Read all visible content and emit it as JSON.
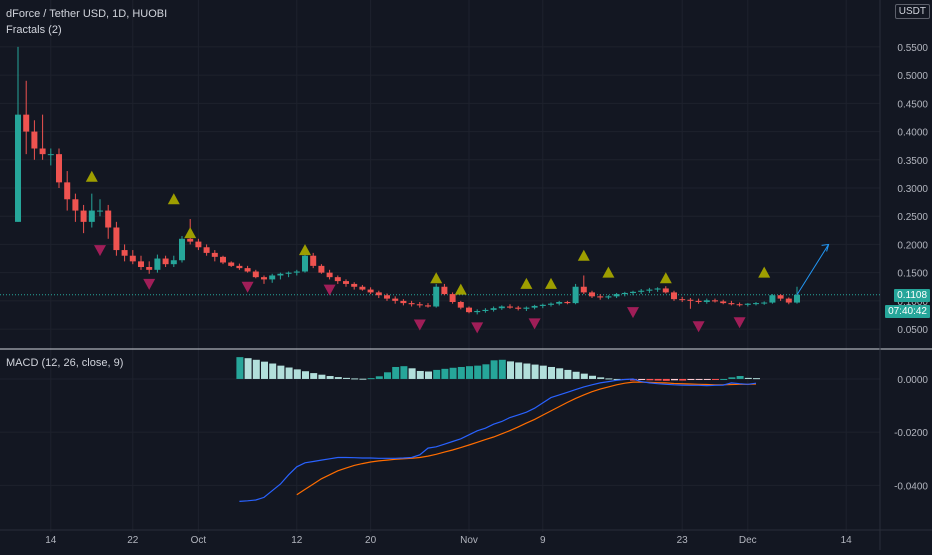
{
  "header": {
    "symbol_title": "dForce / Tether USD, 1D, HUOBI",
    "indicator": "Fractals (2)"
  },
  "macd_header": {
    "label": "MACD (12, 26, close, 9)"
  },
  "axis": {
    "currency": "USDT",
    "last_price": "0.1108",
    "countdown": "07:40:42"
  },
  "colors": {
    "background": "#131722",
    "up": "#26a69a",
    "down": "#ef5350",
    "fractal_up": "#9e9e00",
    "fractal_down": "#a01e58",
    "macd_line": "#2962ff",
    "signal_line": "#ff6d00",
    "hist_up_strong": "#26a69a",
    "hist_up_weak": "#b2dfdb",
    "hist_down_strong": "#ff5252",
    "hist_down_weak": "#ffcdd2",
    "grid": "#1e222d",
    "divider": "#d1d4dc"
  },
  "chart_data": [
    {
      "type": "candlestick",
      "title": "dForce / Tether USD, 1D, HUOBI",
      "y_ticks": [
        "0.5500",
        "0.5000",
        "0.4500",
        "0.4000",
        "0.3500",
        "0.3000",
        "0.2500",
        "0.2000",
        "0.1500",
        "0.1000",
        "0.0500"
      ],
      "x_ticks": [
        "14",
        "22",
        "Oct",
        "12",
        "20",
        "Nov",
        "9",
        "23",
        "Dec",
        "14"
      ],
      "ylim": [
        0.02,
        0.58
      ],
      "grid": true,
      "candles": [
        [
          0.24,
          0.55,
          0.24,
          0.43
        ],
        [
          0.43,
          0.49,
          0.36,
          0.4
        ],
        [
          0.4,
          0.42,
          0.35,
          0.37
        ],
        [
          0.37,
          0.43,
          0.35,
          0.36
        ],
        [
          0.36,
          0.37,
          0.34,
          0.36
        ],
        [
          0.36,
          0.37,
          0.3,
          0.31
        ],
        [
          0.31,
          0.33,
          0.26,
          0.28
        ],
        [
          0.28,
          0.29,
          0.24,
          0.26
        ],
        [
          0.26,
          0.27,
          0.22,
          0.24
        ],
        [
          0.24,
          0.29,
          0.23,
          0.26
        ],
        [
          0.26,
          0.28,
          0.25,
          0.26
        ],
        [
          0.26,
          0.27,
          0.21,
          0.23
        ],
        [
          0.23,
          0.24,
          0.18,
          0.19
        ],
        [
          0.19,
          0.2,
          0.17,
          0.18
        ],
        [
          0.18,
          0.19,
          0.165,
          0.17
        ],
        [
          0.17,
          0.18,
          0.155,
          0.16
        ],
        [
          0.16,
          0.17,
          0.148,
          0.155
        ],
        [
          0.155,
          0.182,
          0.15,
          0.175
        ],
        [
          0.175,
          0.18,
          0.16,
          0.165
        ],
        [
          0.165,
          0.18,
          0.16,
          0.172
        ],
        [
          0.172,
          0.215,
          0.168,
          0.21
        ],
        [
          0.21,
          0.245,
          0.2,
          0.205
        ],
        [
          0.205,
          0.21,
          0.19,
          0.195
        ],
        [
          0.195,
          0.2,
          0.18,
          0.185
        ],
        [
          0.185,
          0.19,
          0.17,
          0.178
        ],
        [
          0.178,
          0.18,
          0.165,
          0.168
        ],
        [
          0.168,
          0.17,
          0.16,
          0.162
        ],
        [
          0.162,
          0.166,
          0.155,
          0.158
        ],
        [
          0.158,
          0.162,
          0.15,
          0.152
        ],
        [
          0.152,
          0.155,
          0.14,
          0.142
        ],
        [
          0.142,
          0.145,
          0.13,
          0.138
        ],
        [
          0.138,
          0.148,
          0.132,
          0.145
        ],
        [
          0.145,
          0.15,
          0.138,
          0.148
        ],
        [
          0.148,
          0.152,
          0.142,
          0.15
        ],
        [
          0.15,
          0.155,
          0.145,
          0.152
        ],
        [
          0.152,
          0.185,
          0.15,
          0.18
        ],
        [
          0.18,
          0.185,
          0.158,
          0.162
        ],
        [
          0.162,
          0.165,
          0.148,
          0.15
        ],
        [
          0.15,
          0.155,
          0.138,
          0.142
        ],
        [
          0.142,
          0.145,
          0.13,
          0.135
        ],
        [
          0.135,
          0.138,
          0.125,
          0.13
        ],
        [
          0.13,
          0.133,
          0.12,
          0.125
        ],
        [
          0.125,
          0.128,
          0.118,
          0.12
        ],
        [
          0.12,
          0.124,
          0.112,
          0.115
        ],
        [
          0.115,
          0.118,
          0.105,
          0.11
        ],
        [
          0.11,
          0.113,
          0.1,
          0.104
        ],
        [
          0.104,
          0.108,
          0.095,
          0.1
        ],
        [
          0.1,
          0.103,
          0.092,
          0.096
        ],
        [
          0.096,
          0.1,
          0.09,
          0.094
        ],
        [
          0.094,
          0.098,
          0.088,
          0.092
        ],
        [
          0.092,
          0.096,
          0.088,
          0.09
        ],
        [
          0.09,
          0.13,
          0.088,
          0.125
        ],
        [
          0.125,
          0.13,
          0.11,
          0.112
        ],
        [
          0.112,
          0.115,
          0.095,
          0.098
        ],
        [
          0.098,
          0.1,
          0.085,
          0.088
        ],
        [
          0.088,
          0.09,
          0.078,
          0.08
        ],
        [
          0.08,
          0.085,
          0.076,
          0.082
        ],
        [
          0.082,
          0.087,
          0.079,
          0.084
        ],
        [
          0.084,
          0.09,
          0.081,
          0.087
        ],
        [
          0.087,
          0.092,
          0.084,
          0.09
        ],
        [
          0.09,
          0.094,
          0.086,
          0.088
        ],
        [
          0.088,
          0.091,
          0.083,
          0.086
        ],
        [
          0.086,
          0.09,
          0.082,
          0.088
        ],
        [
          0.088,
          0.093,
          0.085,
          0.091
        ],
        [
          0.091,
          0.095,
          0.087,
          0.093
        ],
        [
          0.093,
          0.097,
          0.09,
          0.095
        ],
        [
          0.095,
          0.1,
          0.092,
          0.098
        ],
        [
          0.098,
          0.1,
          0.094,
          0.096
        ],
        [
          0.096,
          0.13,
          0.094,
          0.125
        ],
        [
          0.125,
          0.145,
          0.112,
          0.115
        ],
        [
          0.115,
          0.118,
          0.105,
          0.108
        ],
        [
          0.108,
          0.112,
          0.102,
          0.106
        ],
        [
          0.106,
          0.11,
          0.103,
          0.108
        ],
        [
          0.108,
          0.114,
          0.105,
          0.112
        ],
        [
          0.112,
          0.116,
          0.108,
          0.114
        ],
        [
          0.114,
          0.118,
          0.11,
          0.116
        ],
        [
          0.116,
          0.121,
          0.112,
          0.118
        ],
        [
          0.118,
          0.123,
          0.114,
          0.12
        ],
        [
          0.12,
          0.124,
          0.116,
          0.122
        ],
        [
          0.122,
          0.126,
          0.113,
          0.115
        ],
        [
          0.115,
          0.118,
          0.1,
          0.103
        ],
        [
          0.103,
          0.107,
          0.098,
          0.102
        ],
        [
          0.102,
          0.105,
          0.086,
          0.1
        ],
        [
          0.1,
          0.104,
          0.095,
          0.098
        ],
        [
          0.098,
          0.104,
          0.095,
          0.101
        ],
        [
          0.101,
          0.104,
          0.097,
          0.099
        ],
        [
          0.099,
          0.102,
          0.094,
          0.096
        ],
        [
          0.096,
          0.1,
          0.092,
          0.094
        ],
        [
          0.094,
          0.097,
          0.09,
          0.093
        ],
        [
          0.093,
          0.096,
          0.09,
          0.095
        ],
        [
          0.095,
          0.098,
          0.092,
          0.096
        ],
        [
          0.096,
          0.099,
          0.093,
          0.097
        ],
        [
          0.097,
          0.112,
          0.095,
          0.11
        ],
        [
          0.11,
          0.112,
          0.1,
          0.104
        ],
        [
          0.104,
          0.106,
          0.094,
          0.097
        ],
        [
          0.097,
          0.125,
          0.095,
          0.1108
        ]
      ],
      "fractals_up": [
        [
          9,
          0.32
        ],
        [
          19,
          0.28
        ],
        [
          21,
          0.22
        ],
        [
          35,
          0.19
        ],
        [
          51,
          0.14
        ],
        [
          54,
          0.12
        ],
        [
          62,
          0.13
        ],
        [
          65,
          0.13
        ],
        [
          69,
          0.18
        ],
        [
          72,
          0.15
        ],
        [
          79,
          0.14
        ],
        [
          91,
          0.15
        ]
      ],
      "fractals_down": [
        [
          10,
          0.19
        ],
        [
          16,
          0.13
        ],
        [
          28,
          0.125
        ],
        [
          38,
          0.12
        ],
        [
          49,
          0.058
        ],
        [
          56,
          0.053
        ],
        [
          63,
          0.06
        ],
        [
          75,
          0.08
        ],
        [
          83,
          0.055
        ],
        [
          88,
          0.062
        ]
      ],
      "projection": [
        [
          95,
          0.1108
        ],
        [
          98,
          0.2
        ]
      ]
    },
    {
      "type": "line",
      "title": "MACD (12, 26, close, 9)",
      "y_ticks": [
        "0.0000",
        "-0.0200",
        "-0.0400"
      ],
      "ylim": [
        -0.053,
        0.009
      ],
      "start_index": 27,
      "series": [
        {
          "name": "MACD",
          "values": [
            -0.046,
            -0.0458,
            -0.0455,
            -0.0445,
            -0.042,
            -0.0395,
            -0.036,
            -0.033,
            -0.0315,
            -0.031,
            -0.0305,
            -0.03,
            -0.0295,
            -0.0295,
            -0.0296,
            -0.0297,
            -0.0297,
            -0.0298,
            -0.0298,
            -0.0298,
            -0.0297,
            -0.0295,
            -0.0285,
            -0.026,
            -0.0255,
            -0.0245,
            -0.0235,
            -0.0225,
            -0.021,
            -0.0195,
            -0.0185,
            -0.017,
            -0.016,
            -0.0145,
            -0.0135,
            -0.0125,
            -0.011,
            -0.009,
            -0.007,
            -0.006,
            -0.005,
            -0.004,
            -0.003,
            -0.0022,
            -0.0015,
            -0.001,
            -0.0005,
            -0.0002,
            0.0,
            -0.001,
            -0.0015,
            -0.0018,
            -0.002,
            -0.0022,
            -0.0023,
            -0.0024,
            -0.0024,
            -0.0025,
            -0.0024,
            -0.0023,
            -0.0015,
            -0.0018,
            -0.002,
            -0.0016
          ]
        },
        {
          "name": "Signal",
          "values": [
            null,
            null,
            null,
            null,
            null,
            null,
            null,
            -0.0435,
            -0.0415,
            -0.0395,
            -0.0375,
            -0.036,
            -0.0345,
            -0.0335,
            -0.0325,
            -0.0318,
            -0.0312,
            -0.0308,
            -0.0305,
            -0.0302,
            -0.03,
            -0.0298,
            -0.0295,
            -0.029,
            -0.0283,
            -0.0275,
            -0.0267,
            -0.0258,
            -0.0248,
            -0.0238,
            -0.0228,
            -0.0218,
            -0.0206,
            -0.0194,
            -0.018,
            -0.0166,
            -0.0152,
            -0.0136,
            -0.012,
            -0.0104,
            -0.0088,
            -0.0073,
            -0.006,
            -0.0048,
            -0.0038,
            -0.003,
            -0.0022,
            -0.0016,
            -0.0012,
            -0.0012,
            -0.0013,
            -0.0014,
            -0.0015,
            -0.0017,
            -0.0018,
            -0.0019,
            -0.002,
            -0.0021,
            -0.0022,
            -0.0022,
            -0.0021,
            -0.002,
            -0.002,
            -0.0019
          ]
        }
      ],
      "histogram": [
        0.0082,
        0.0078,
        0.0072,
        0.0065,
        0.0058,
        0.005,
        0.0043,
        0.0036,
        0.0029,
        0.0022,
        0.0016,
        0.0011,
        0.0007,
        0.0004,
        0.0002,
        0.0001,
        0.0003,
        0.001,
        0.0025,
        0.0045,
        0.0048,
        0.004,
        0.003,
        0.0028,
        0.0034,
        0.0038,
        0.0042,
        0.0045,
        0.0048,
        0.005,
        0.0055,
        0.007,
        0.0072,
        0.0066,
        0.0062,
        0.0058,
        0.0054,
        0.005,
        0.0045,
        0.004,
        0.0034,
        0.0027,
        0.002,
        0.0012,
        0.0006,
        0.0002,
        0.0,
        -0.0003,
        -0.0006,
        -0.0004,
        -0.0005,
        -0.0006,
        -0.0007,
        -0.0005,
        -0.0006,
        -0.0004,
        -0.0003,
        -0.0002,
        -0.0002,
        0.0,
        0.0006,
        0.0011,
        0.0004,
        0.0003
      ]
    }
  ]
}
